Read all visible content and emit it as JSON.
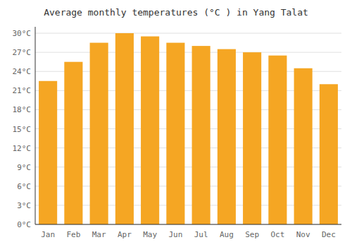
{
  "chart_data": {
    "type": "bar",
    "title": "Average monthly temperatures (°C ) in Yang Talat",
    "categories": [
      "Jan",
      "Feb",
      "Mar",
      "Apr",
      "May",
      "Jun",
      "Jul",
      "Aug",
      "Sep",
      "Oct",
      "Nov",
      "Dec"
    ],
    "values": [
      22.5,
      25.5,
      28.5,
      30.0,
      29.5,
      28.5,
      28.0,
      27.5,
      27.0,
      26.5,
      24.5,
      22.0
    ],
    "color": "#F5A623",
    "ylim": [
      0,
      31
    ],
    "yticks": [
      {
        "value": 0,
        "label": "0°C"
      },
      {
        "value": 3,
        "label": "3°C"
      },
      {
        "value": 6,
        "label": "6°C"
      },
      {
        "value": 9,
        "label": "9°C"
      },
      {
        "value": 12,
        "label": "12°C"
      },
      {
        "value": 15,
        "label": "15°C"
      },
      {
        "value": 18,
        "label": "18°C"
      },
      {
        "value": 21,
        "label": "21°C"
      },
      {
        "value": 24,
        "label": "24°C"
      },
      {
        "value": 27,
        "label": "27°C"
      },
      {
        "value": 30,
        "label": "30°C"
      }
    ],
    "grid": true
  }
}
